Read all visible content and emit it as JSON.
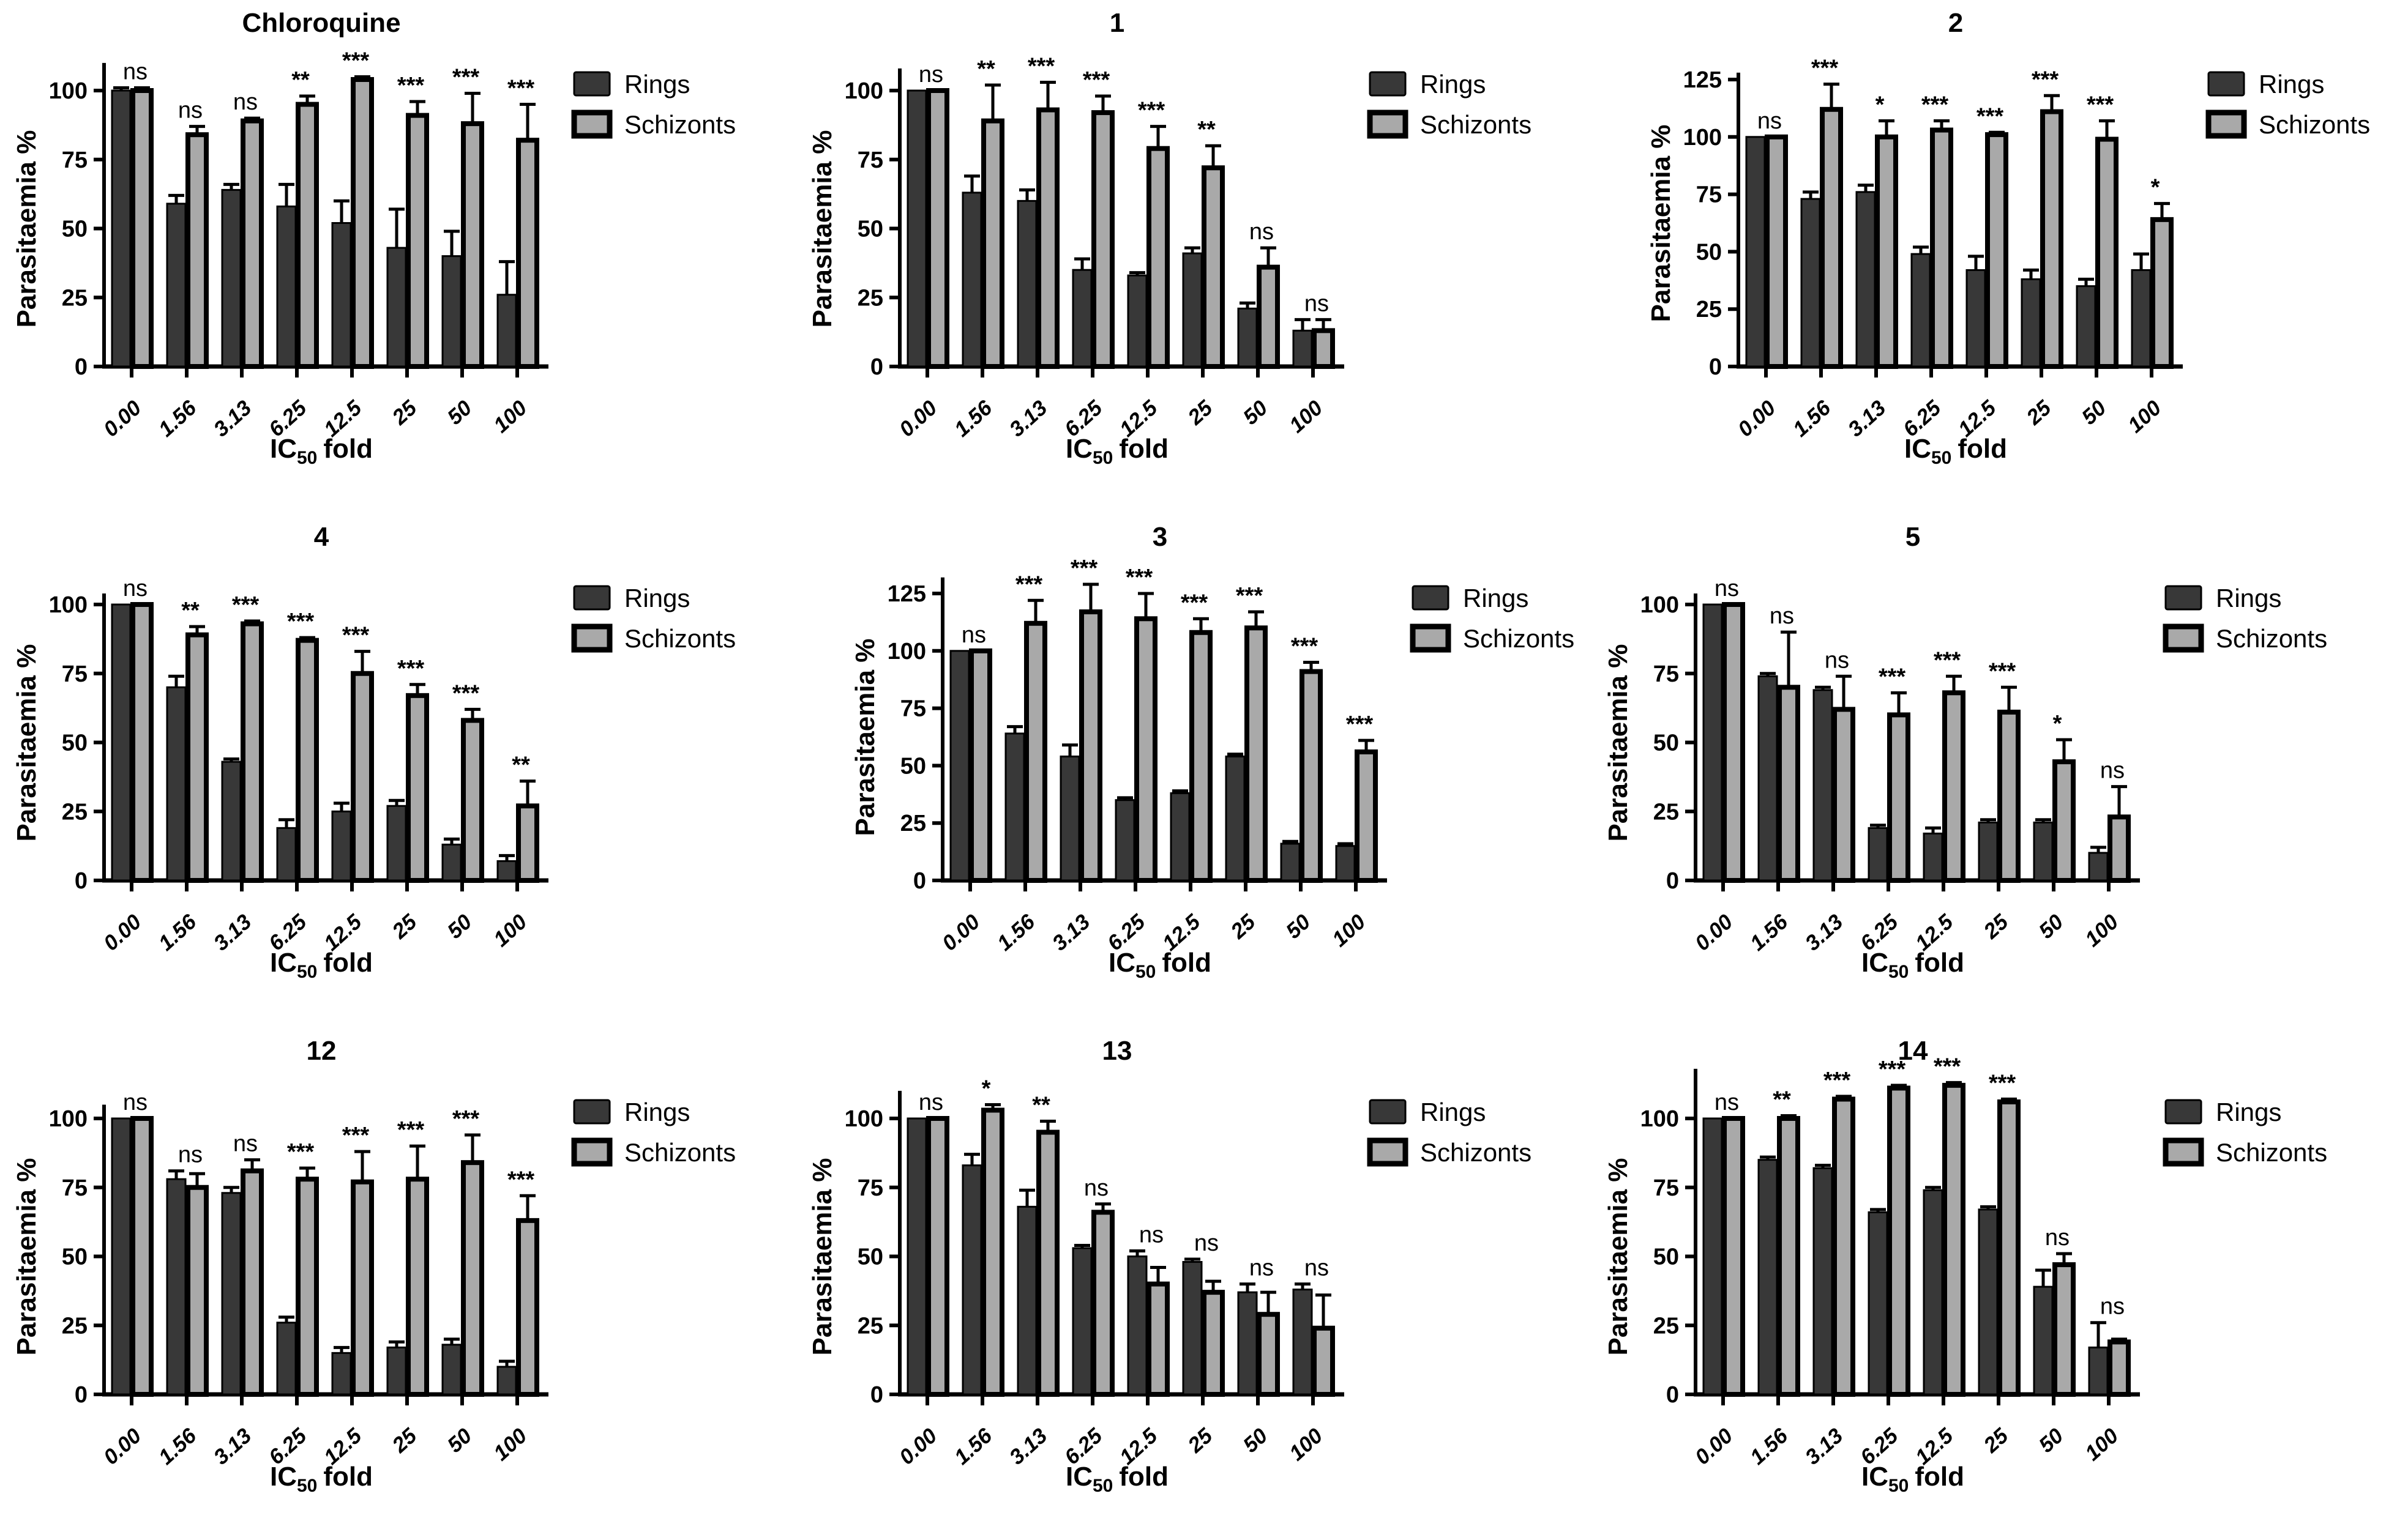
{
  "page": {
    "background": "#ffffff"
  },
  "colors": {
    "rings": "#383838",
    "schizonts": "#a9a9a9",
    "axis": "#000000",
    "text": "#000000"
  },
  "legend": {
    "rings_label": "Rings",
    "schizonts_label": "Schizonts"
  },
  "axis": {
    "ylabel": "Parasitaemia %",
    "xlabel_main": "IC",
    "xlabel_sub": "50",
    "xlabel_rest": "fold"
  },
  "chart_data": [
    {
      "type": "bar",
      "title": "Chloroquine",
      "categories": [
        "0.00",
        "1.56",
        "3.13",
        "6.25",
        "12.5",
        "25",
        "50",
        "100"
      ],
      "yticks": [
        0,
        25,
        50,
        75,
        100
      ],
      "axis_max": 110,
      "ylabel": "Parasitaemia %",
      "xlabel": "IC50 fold",
      "legend_position": "right",
      "grid": false,
      "series": [
        {
          "name": "Rings",
          "values": [
            100,
            59,
            64,
            58,
            52,
            43,
            40,
            26
          ],
          "errors": [
            1,
            3,
            2,
            8,
            8,
            14,
            9,
            12
          ]
        },
        {
          "name": "Schizonts",
          "values": [
            100,
            84,
            89,
            95,
            104,
            91,
            88,
            82
          ],
          "errors": [
            1,
            3,
            1,
            3,
            1,
            5,
            11,
            13
          ]
        }
      ],
      "annotations": [
        "ns",
        "ns",
        "ns",
        "**",
        "***",
        "***",
        "***",
        "***"
      ]
    },
    {
      "type": "bar",
      "title": "1",
      "categories": [
        "0.00",
        "1.56",
        "3.13",
        "6.25",
        "12.5",
        "25",
        "50",
        "100"
      ],
      "yticks": [
        0,
        25,
        50,
        75,
        100
      ],
      "axis_max": 108,
      "ylabel": "Parasitaemia %",
      "xlabel": "IC50 fold",
      "legend_position": "right",
      "grid": false,
      "series": [
        {
          "name": "Rings",
          "values": [
            100,
            63,
            60,
            35,
            33,
            41,
            21,
            13
          ],
          "errors": [
            0,
            6,
            4,
            4,
            1,
            2,
            2,
            4
          ]
        },
        {
          "name": "Schizonts",
          "values": [
            100,
            89,
            93,
            92,
            79,
            72,
            36,
            13
          ],
          "errors": [
            0,
            13,
            10,
            6,
            8,
            8,
            7,
            4
          ]
        }
      ],
      "annotations": [
        "ns",
        "**",
        "***",
        "***",
        "***",
        "**",
        "ns",
        "ns"
      ]
    },
    {
      "type": "bar",
      "title": "2",
      "categories": [
        "0.00",
        "1.56",
        "3.13",
        "6.25",
        "12.5",
        "25",
        "50",
        "100"
      ],
      "yticks": [
        0,
        25,
        50,
        75,
        100,
        125
      ],
      "axis_max": 128,
      "ylabel": "Parasitaemia %",
      "xlabel": "IC50 fold",
      "legend_position": "right",
      "grid": false,
      "series": [
        {
          "name": "Rings",
          "values": [
            100,
            73,
            76,
            49,
            42,
            38,
            35,
            42
          ],
          "errors": [
            0,
            3,
            3,
            3,
            6,
            4,
            3,
            7
          ]
        },
        {
          "name": "Schizonts",
          "values": [
            100,
            112,
            100,
            103,
            101,
            111,
            99,
            64
          ],
          "errors": [
            0,
            11,
            7,
            4,
            1,
            7,
            8,
            7
          ]
        }
      ],
      "annotations": [
        "ns",
        "***",
        "*",
        "***",
        "***",
        "***",
        "***",
        "*"
      ]
    },
    {
      "type": "bar",
      "title": "4",
      "categories": [
        "0.00",
        "1.56",
        "3.13",
        "6.25",
        "12.5",
        "25",
        "50",
        "100"
      ],
      "yticks": [
        0,
        25,
        50,
        75,
        100
      ],
      "axis_max": 104,
      "ylabel": "Parasitaemia %",
      "xlabel": "IC50 fold",
      "legend_position": "right",
      "grid": false,
      "series": [
        {
          "name": "Rings",
          "values": [
            100,
            70,
            43,
            19,
            25,
            27,
            13,
            7
          ],
          "errors": [
            0,
            4,
            1,
            3,
            3,
            2,
            2,
            2
          ]
        },
        {
          "name": "Schizonts",
          "values": [
            100,
            89,
            93,
            87,
            75,
            67,
            58,
            27
          ],
          "errors": [
            0,
            3,
            1,
            1,
            8,
            4,
            4,
            9
          ]
        }
      ],
      "annotations": [
        "ns",
        "**",
        "***",
        "***",
        "***",
        "***",
        "***",
        "**"
      ]
    },
    {
      "type": "bar",
      "title": "3",
      "categories": [
        "0.00",
        "1.56",
        "3.13",
        "6.25",
        "12.5",
        "25",
        "50",
        "100"
      ],
      "yticks": [
        0,
        25,
        50,
        75,
        100,
        125
      ],
      "axis_max": 132,
      "ylabel": "Parasitaemia %",
      "xlabel": "IC50 fold",
      "legend_position": "right",
      "grid": false,
      "series": [
        {
          "name": "Rings",
          "values": [
            100,
            64,
            54,
            35,
            38,
            54,
            16,
            15
          ],
          "errors": [
            0,
            3,
            5,
            1,
            1,
            1,
            1,
            1
          ]
        },
        {
          "name": "Schizonts",
          "values": [
            100,
            112,
            117,
            114,
            108,
            110,
            91,
            56
          ],
          "errors": [
            0,
            10,
            12,
            11,
            6,
            7,
            4,
            5
          ]
        }
      ],
      "annotations": [
        "ns",
        "***",
        "***",
        "***",
        "***",
        "***",
        "***",
        "***"
      ]
    },
    {
      "type": "bar",
      "title": "5",
      "categories": [
        "0.00",
        "1.56",
        "3.13",
        "6.25",
        "12.5",
        "25",
        "50",
        "100"
      ],
      "yticks": [
        0,
        25,
        50,
        75,
        100
      ],
      "axis_max": 104,
      "ylabel": "Parasitaemia %",
      "xlabel": "IC50 fold",
      "legend_position": "right",
      "grid": false,
      "series": [
        {
          "name": "Rings",
          "values": [
            100,
            74,
            69,
            19,
            17,
            21,
            21,
            10
          ],
          "errors": [
            0,
            1,
            1,
            1,
            2,
            1,
            1,
            2
          ]
        },
        {
          "name": "Schizonts",
          "values": [
            100,
            70,
            62,
            60,
            68,
            61,
            43,
            23
          ],
          "errors": [
            0,
            20,
            12,
            8,
            6,
            9,
            8,
            11
          ]
        }
      ],
      "annotations": [
        "ns",
        "ns",
        "ns",
        "***",
        "***",
        "***",
        "*",
        "ns"
      ]
    },
    {
      "type": "bar",
      "title": "12",
      "categories": [
        "0.00",
        "1.56",
        "3.13",
        "6.25",
        "12.5",
        "25",
        "50",
        "100"
      ],
      "yticks": [
        0,
        25,
        50,
        75,
        100
      ],
      "axis_max": 105,
      "ylabel": "Parasitaemia %",
      "xlabel": "IC50 fold",
      "legend_position": "right",
      "grid": false,
      "series": [
        {
          "name": "Rings",
          "values": [
            100,
            78,
            73,
            26,
            15,
            17,
            18,
            10
          ],
          "errors": [
            0,
            3,
            2,
            2,
            2,
            2,
            2,
            2
          ]
        },
        {
          "name": "Schizonts",
          "values": [
            100,
            75,
            81,
            78,
            77,
            78,
            84,
            63
          ],
          "errors": [
            0,
            5,
            4,
            4,
            11,
            12,
            10,
            9
          ]
        }
      ],
      "annotations": [
        "ns",
        "ns",
        "ns",
        "***",
        "***",
        "***",
        "***",
        "***"
      ]
    },
    {
      "type": "bar",
      "title": "13",
      "categories": [
        "0.00",
        "1.56",
        "3.13",
        "6.25",
        "12.5",
        "25",
        "50",
        "100"
      ],
      "yticks": [
        0,
        25,
        50,
        75,
        100
      ],
      "axis_max": 110,
      "ylabel": "Parasitaemia %",
      "xlabel": "IC50 fold",
      "legend_position": "right",
      "grid": false,
      "series": [
        {
          "name": "Rings",
          "values": [
            100,
            83,
            68,
            53,
            50,
            48,
            37,
            38
          ],
          "errors": [
            0,
            4,
            6,
            1,
            2,
            1,
            3,
            2
          ]
        },
        {
          "name": "Schizonts",
          "values": [
            100,
            103,
            95,
            66,
            40,
            37,
            29,
            24
          ],
          "errors": [
            0,
            2,
            4,
            3,
            6,
            4,
            8,
            12
          ]
        }
      ],
      "annotations": [
        "ns",
        "*",
        "**",
        "ns",
        "ns",
        "ns",
        "ns",
        "ns"
      ]
    },
    {
      "type": "bar",
      "title": "14",
      "categories": [
        "0.00",
        "1.56",
        "3.13",
        "6.25",
        "12.5",
        "25",
        "50",
        "100"
      ],
      "yticks": [
        0,
        25,
        50,
        75,
        100
      ],
      "axis_max": 118,
      "ylabel": "Parasitaemia %",
      "xlabel": "IC50 fold",
      "legend_position": "right",
      "grid": false,
      "series": [
        {
          "name": "Rings",
          "values": [
            100,
            85,
            82,
            66,
            74,
            67,
            39,
            17
          ],
          "errors": [
            0,
            1,
            1,
            1,
            1,
            1,
            6,
            9
          ]
        },
        {
          "name": "Schizonts",
          "values": [
            100,
            100,
            107,
            111,
            112,
            106,
            47,
            19
          ],
          "errors": [
            0,
            1,
            1,
            1,
            1,
            1,
            4,
            1
          ]
        }
      ],
      "annotations": [
        "ns",
        "**",
        "***",
        "***",
        "***",
        "***",
        "ns",
        "ns"
      ]
    }
  ]
}
